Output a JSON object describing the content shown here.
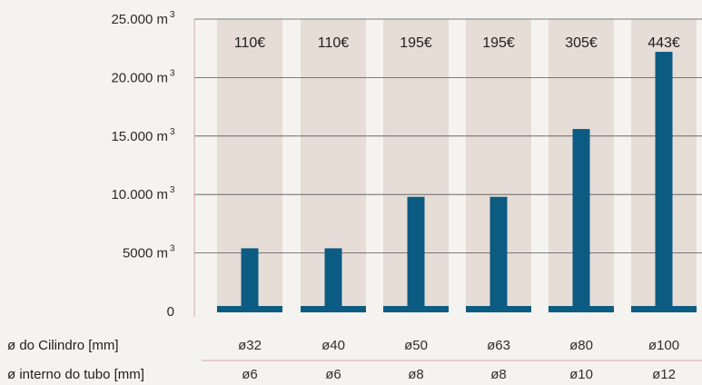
{
  "chart_data": {
    "type": "bar",
    "colors": {
      "bar": "#0c5b82",
      "column_bg": "#e6ddd6",
      "page_bg": "#f5f3ef",
      "grid": "#555555",
      "frame": "#d9a4a8"
    },
    "ylim": [
      0,
      25000
    ],
    "yticks": [
      {
        "value": 0,
        "label": "0",
        "sup": ""
      },
      {
        "value": 5000,
        "label": "5000 m",
        "sup": "3"
      },
      {
        "value": 10000,
        "label": "10.000 m",
        "sup": "3"
      },
      {
        "value": 15000,
        "label": "15.000 m",
        "sup": "3"
      },
      {
        "value": 20000,
        "label": "20.000 m",
        "sup": "3"
      },
      {
        "value": 25000,
        "label": "25.000 m",
        "sup": "3"
      }
    ],
    "prices": [
      "110€",
      "110€",
      "195€",
      "195€",
      "305€",
      "443€"
    ],
    "values": [
      5400,
      5400,
      9800,
      9800,
      15600,
      22200
    ],
    "rows": [
      {
        "label": "ø do Cilindro [mm]",
        "values": [
          "ø32",
          "ø40",
          "ø50",
          "ø63",
          "ø80",
          "ø100"
        ]
      },
      {
        "label": "ø interno do tubo [mm]",
        "values": [
          "ø6",
          "ø6",
          "ø8",
          "ø8",
          "ø10",
          "ø12"
        ]
      }
    ]
  }
}
